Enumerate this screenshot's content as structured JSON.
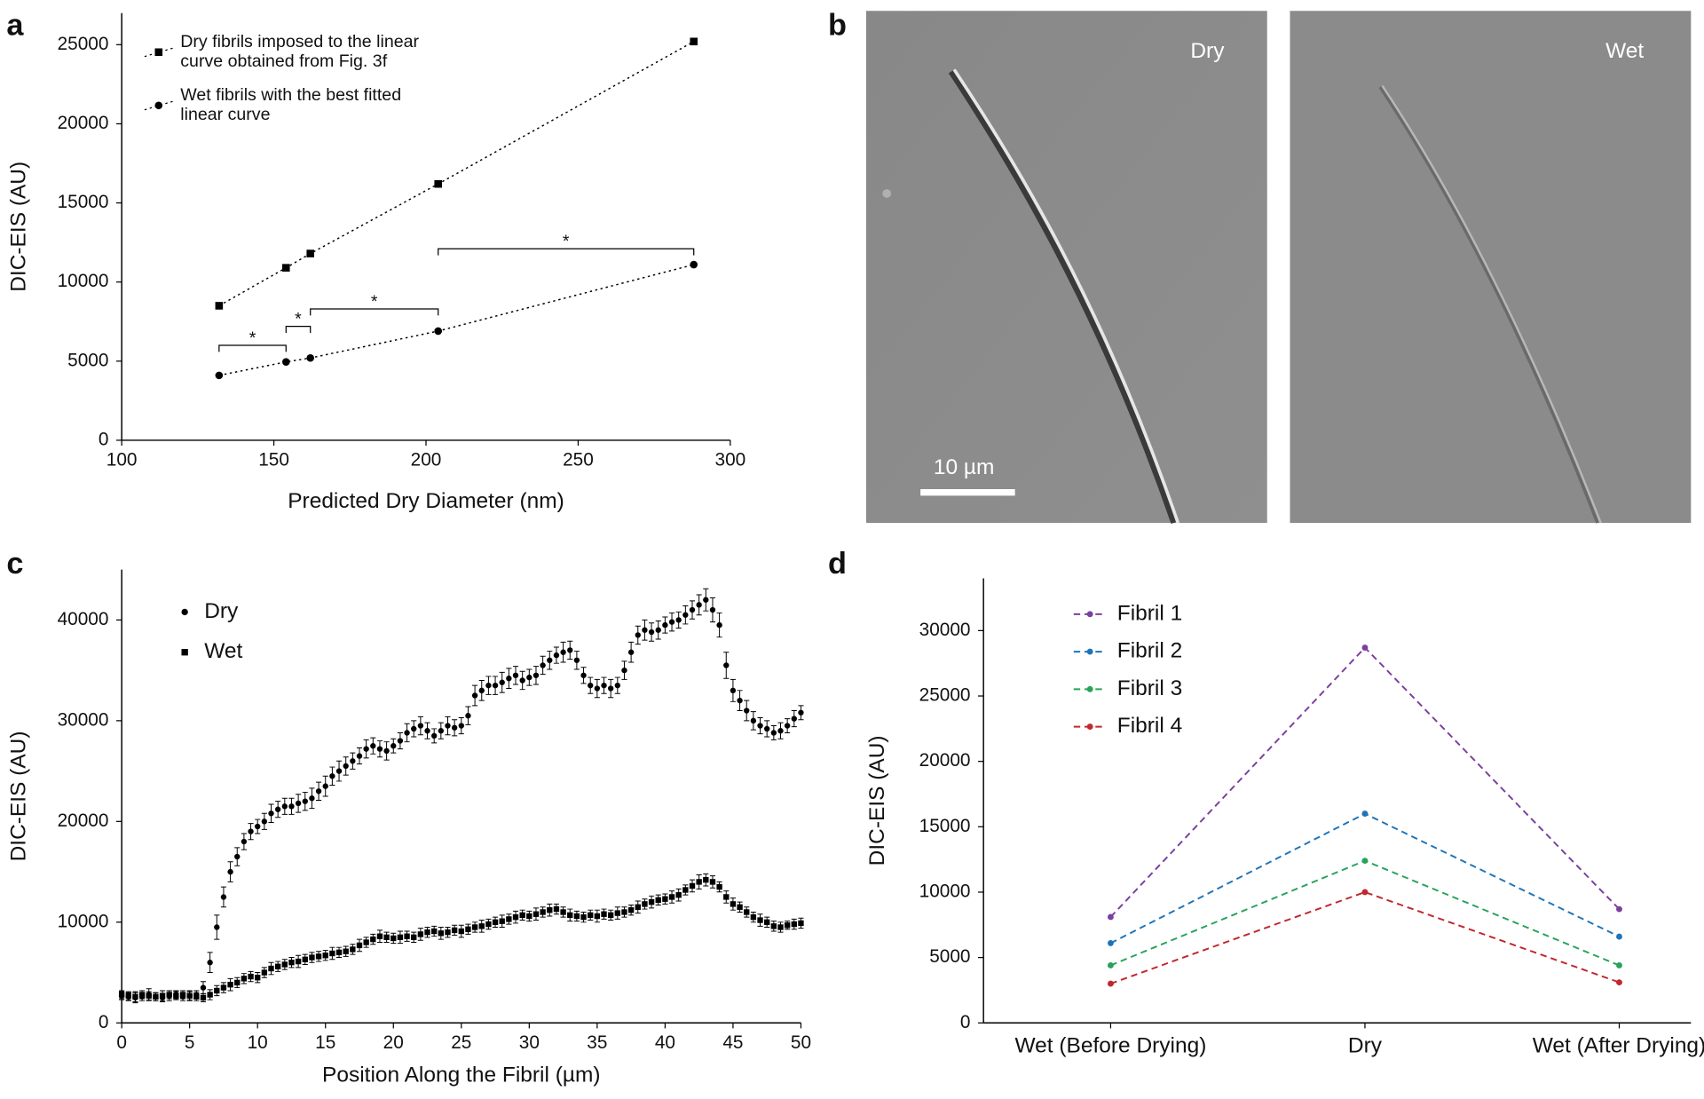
{
  "chart_data": [
    {
      "type": "line",
      "panel": "a",
      "xlabel": "Predicted Dry Diameter (nm)",
      "ylabel": "DIC-EIS (AU)",
      "x": [
        132,
        154,
        162,
        204,
        288
      ],
      "series": [
        {
          "name": "Dry fibrils imposed to the linear curve obtained from Fig. 3f",
          "color": "#000000",
          "marker": "square",
          "values": [
            8500,
            10900,
            11800,
            16200,
            25200
          ]
        },
        {
          "name": "Wet fibrils with the best fitted linear curve",
          "color": "#000000",
          "marker": "circle",
          "values": [
            4100,
            4950,
            5200,
            6900,
            11100
          ]
        }
      ],
      "brackets": [
        {
          "x": [
            132,
            154
          ],
          "y": 6000,
          "label": "*"
        },
        {
          "x": [
            154,
            162
          ],
          "y": 7200,
          "label": "*"
        },
        {
          "x": [
            162,
            204
          ],
          "y": 8300,
          "label": "*"
        },
        {
          "x": [
            204,
            288
          ],
          "y": 12100,
          "label": "*"
        }
      ],
      "xlim": [
        100,
        300
      ],
      "xticks": [
        100,
        150,
        200,
        250,
        300
      ],
      "ylim": [
        0,
        27000
      ],
      "yticks": [
        0,
        5000,
        10000,
        15000,
        20000,
        25000
      ],
      "legend": "upper left"
    },
    {
      "type": "image",
      "panel": "b",
      "images": [
        {
          "label": "Dry"
        },
        {
          "label": "Wet"
        }
      ],
      "scale_bar_label": "10 µm"
    },
    {
      "type": "scatter",
      "panel": "c",
      "xlabel": "Position Along the Fibril (µm)",
      "ylabel": "DIC-EIS (AU)",
      "x": [
        0,
        0.5,
        1,
        1.5,
        2,
        2.5,
        3,
        3.5,
        4,
        4.5,
        5,
        5.5,
        6,
        6.5,
        7,
        7.5,
        8,
        8.5,
        9,
        9.5,
        10,
        10.5,
        11,
        11.5,
        12,
        12.5,
        13,
        13.5,
        14,
        14.5,
        15,
        15.5,
        16,
        16.5,
        17,
        17.5,
        18,
        18.5,
        19,
        19.5,
        20,
        20.5,
        21,
        21.5,
        22,
        22.5,
        23,
        23.5,
        24,
        24.5,
        25,
        25.5,
        26,
        26.5,
        27,
        27.5,
        28,
        28.5,
        29,
        29.5,
        30,
        30.5,
        31,
        31.5,
        32,
        32.5,
        33,
        33.5,
        34,
        34.5,
        35,
        35.5,
        36,
        36.5,
        37,
        37.5,
        38,
        38.5,
        39,
        39.5,
        40,
        40.5,
        41,
        41.5,
        42,
        42.5,
        43,
        43.5,
        44,
        44.5,
        45,
        45.5,
        46,
        46.5,
        47,
        47.5,
        48,
        48.5,
        49,
        49.5,
        50
      ],
      "series": [
        {
          "name": "Dry",
          "color": "#000000",
          "marker": "circle",
          "values": [
            2700,
            2600,
            2500,
            2600,
            2800,
            2600,
            2500,
            2700,
            2800,
            2600,
            2700,
            2800,
            3500,
            6000,
            9500,
            12500,
            15000,
            16500,
            18000,
            19000,
            19500,
            20000,
            20800,
            21200,
            21500,
            21500,
            21800,
            22000,
            22300,
            23000,
            23500,
            24500,
            25000,
            25500,
            26000,
            26500,
            27200,
            27500,
            27200,
            27000,
            27500,
            28000,
            28800,
            29200,
            29500,
            29000,
            28500,
            29000,
            29500,
            29300,
            29500,
            30500,
            32500,
            33000,
            33500,
            33500,
            33800,
            34200,
            34500,
            34000,
            34300,
            34500,
            35500,
            36000,
            36500,
            36800,
            37000,
            36000,
            34500,
            33500,
            33200,
            33500,
            33200,
            33500,
            35000,
            36800,
            38500,
            39000,
            38800,
            39000,
            39500,
            39800,
            40000,
            40500,
            41000,
            41500,
            42000,
            41000,
            39500,
            35500,
            33000,
            32000,
            31000,
            30000,
            29500,
            29200,
            28800,
            29000,
            29500,
            30200,
            30800
          ],
          "errors": [
            400,
            400,
            500,
            400,
            600,
            400,
            400,
            500,
            400,
            400,
            500,
            400,
            600,
            1000,
            1200,
            1000,
            1000,
            900,
            800,
            800,
            700,
            800,
            900,
            800,
            800,
            800,
            900,
            900,
            1000,
            900,
            1000,
            900,
            1000,
            900,
            800,
            800,
            900,
            800,
            800,
            900,
            700,
            800,
            900,
            800,
            900,
            800,
            700,
            800,
            900,
            800,
            800,
            900,
            1000,
            1000,
            900,
            900,
            1000,
            1000,
            900,
            900,
            800,
            900,
            900,
            900,
            800,
            1000,
            900,
            900,
            800,
            800,
            900,
            800,
            900,
            800,
            900,
            1000,
            900,
            1000,
            900,
            900,
            800,
            900,
            800,
            900,
            900,
            1000,
            1100,
            1200,
            1200,
            1300,
            1100,
            1000,
            1000,
            900,
            800,
            800,
            700,
            800,
            700,
            800,
            700
          ]
        },
        {
          "name": "Wet",
          "color": "#000000",
          "marker": "square",
          "values": [
            2800,
            2700,
            2600,
            2800,
            2700,
            2600,
            2700,
            2800,
            2700,
            2800,
            2700,
            2600,
            2500,
            2800,
            3200,
            3500,
            3800,
            4000,
            4400,
            4600,
            4500,
            5000,
            5400,
            5600,
            5800,
            6000,
            6100,
            6300,
            6500,
            6600,
            6700,
            6900,
            7000,
            7100,
            7300,
            7700,
            8000,
            8300,
            8600,
            8500,
            8400,
            8500,
            8600,
            8500,
            8800,
            9000,
            9100,
            8900,
            9000,
            9200,
            9100,
            9300,
            9500,
            9600,
            9800,
            10000,
            10100,
            10300,
            10500,
            10700,
            10600,
            10800,
            11000,
            11200,
            11300,
            11000,
            10700,
            10600,
            10500,
            10700,
            10600,
            10800,
            10700,
            10900,
            11000,
            11200,
            11500,
            11800,
            12000,
            12200,
            12300,
            12500,
            12700,
            13200,
            13600,
            14000,
            14200,
            14000,
            13500,
            12500,
            11800,
            11500,
            11000,
            10500,
            10200,
            10000,
            9600,
            9500,
            9700,
            9800,
            9900
          ],
          "errors": [
            400,
            400,
            500,
            400,
            400,
            400,
            500,
            400,
            400,
            400,
            400,
            400,
            400,
            500,
            500,
            500,
            600,
            500,
            500,
            500,
            500,
            500,
            600,
            500,
            500,
            500,
            600,
            500,
            500,
            500,
            500,
            600,
            500,
            500,
            500,
            600,
            500,
            500,
            600,
            500,
            500,
            600,
            500,
            500,
            600,
            500,
            500,
            600,
            500,
            500,
            600,
            500,
            500,
            600,
            500,
            500,
            600,
            500,
            600,
            500,
            500,
            600,
            500,
            600,
            500,
            500,
            600,
            500,
            500,
            500,
            600,
            500,
            500,
            600,
            500,
            500,
            600,
            500,
            600,
            500,
            500,
            600,
            600,
            500,
            600,
            700,
            600,
            600,
            500,
            600,
            600,
            500,
            500,
            500,
            600,
            500,
            500,
            500,
            400,
            500,
            500
          ]
        }
      ],
      "xlim": [
        0,
        50
      ],
      "xticks": [
        0,
        5,
        10,
        15,
        20,
        25,
        30,
        35,
        40,
        45,
        50
      ],
      "ylim": [
        0,
        45000
      ],
      "yticks": [
        0,
        10000,
        20000,
        30000,
        40000
      ],
      "legend": "upper left"
    },
    {
      "type": "line",
      "panel": "d",
      "ylabel": "DIC-EIS (AU)",
      "categories": [
        "Wet (Before Drying)",
        "Dry",
        "Wet (After Drying)"
      ],
      "series": [
        {
          "name": "Fibril 1",
          "color": "#7b3f9e",
          "marker": "circle",
          "values": [
            8100,
            28700,
            8700
          ]
        },
        {
          "name": "Fibril 2",
          "color": "#1f74b8",
          "marker": "circle",
          "values": [
            6100,
            16000,
            6600
          ]
        },
        {
          "name": "Fibril 3",
          "color": "#27a35a",
          "marker": "circle",
          "values": [
            4400,
            12400,
            4400
          ]
        },
        {
          "name": "Fibril 4",
          "color": "#c0282d",
          "marker": "circle",
          "values": [
            3000,
            10000,
            3100
          ]
        }
      ],
      "ylim": [
        0,
        34000
      ],
      "yticks": [
        0,
        5000,
        10000,
        15000,
        20000,
        25000,
        30000
      ],
      "line_style": "dashed",
      "legend": "upper left"
    }
  ]
}
